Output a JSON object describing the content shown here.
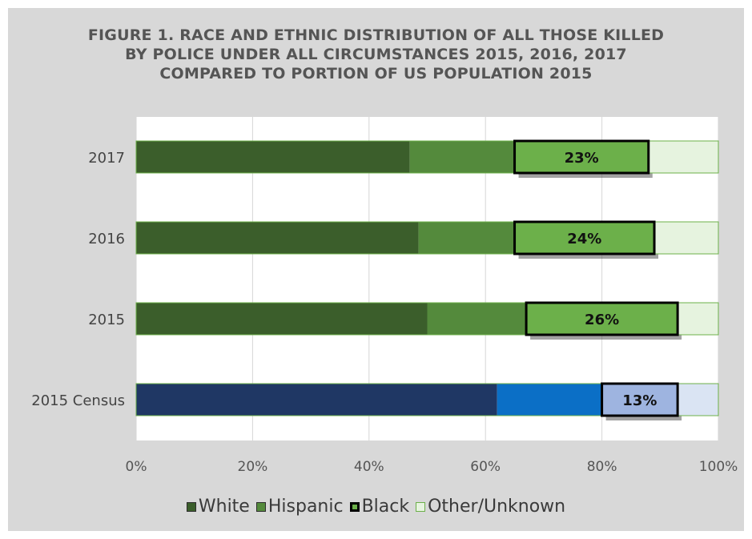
{
  "figure": {
    "title_lines": [
      "FIGURE 1. RACE AND ETHNIC DISTRIBUTION OF ALL THOSE KILLED",
      "BY POLICE UNDER ALL CIRCUMSTANCES 2015, 2016, 2017",
      "COMPARED TO PORTION OF US POPULATION 2015"
    ]
  },
  "chart_data": {
    "type": "bar",
    "orientation": "horizontal",
    "stacked": true,
    "categories": [
      "2017",
      "2016",
      "2015",
      "2015 Census"
    ],
    "series": [
      {
        "name": "White",
        "values": [
          47,
          48.5,
          50,
          62
        ]
      },
      {
        "name": "Hispanic",
        "values": [
          18,
          16.5,
          17,
          18
        ]
      },
      {
        "name": "Black",
        "values": [
          23,
          24,
          26,
          13
        ],
        "data_labels": [
          "23%",
          "24%",
          "26%",
          "13%"
        ]
      },
      {
        "name": "Other/Unknown",
        "values": [
          12,
          11,
          7,
          7
        ]
      }
    ],
    "xlim": [
      0,
      100
    ],
    "xticks": [
      "0%",
      "20%",
      "40%",
      "60%",
      "80%",
      "100%"
    ],
    "grid": true,
    "legend_position": "bottom",
    "colors": {
      "White": "#3b5e2b",
      "Hispanic": "#548a3c",
      "Black": "#6cb04a",
      "Other/Unknown": "#e6f3df",
      "Census_White": "#1f3764",
      "Census_Hispanic": "#0b6fc6",
      "Census_Black": "#9eb4e0",
      "Census_Other": "#dae4f3"
    }
  }
}
